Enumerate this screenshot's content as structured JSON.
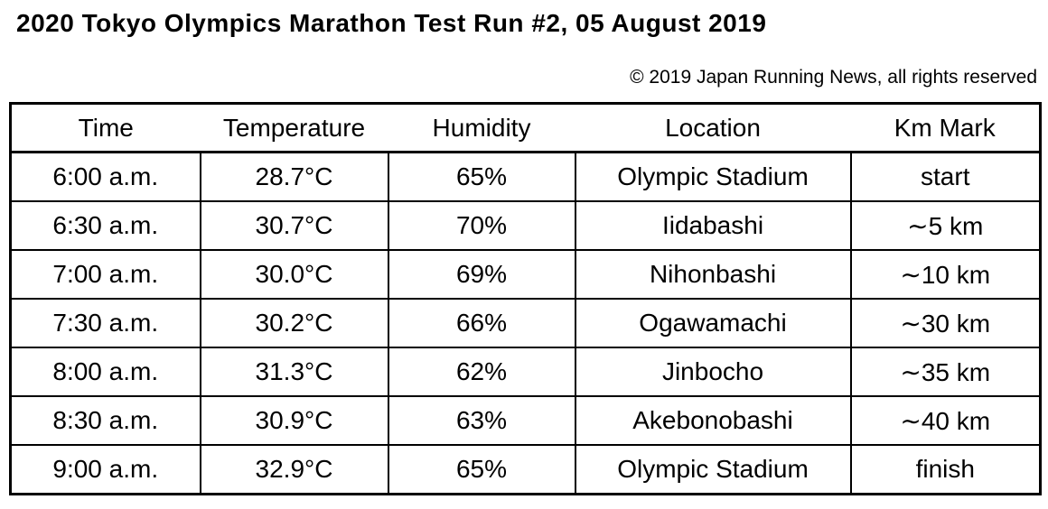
{
  "page": {
    "title": "2020 Tokyo Olympics Marathon Test Run #2, 05 August 2019",
    "copyright": "© 2019 Japan Running News, all rights reserved"
  },
  "colors": {
    "background": "#ffffff",
    "text": "#000000",
    "border": "#000000"
  },
  "table": {
    "headers": [
      "Time",
      "Temperature",
      "Humidity",
      "Location",
      "Km Mark"
    ],
    "rows": [
      [
        "6:00 a.m.",
        "28.7°C",
        "65%",
        "Olympic Stadium",
        "start"
      ],
      [
        "6:30 a.m.",
        "30.7°C",
        "70%",
        "Iidabashi",
        "∼5 km"
      ],
      [
        "7:00 a.m.",
        "30.0°C",
        "69%",
        "Nihonbashi",
        "∼10 km"
      ],
      [
        "7:30 a.m.",
        "30.2°C",
        "66%",
        "Ogawamachi",
        "∼30 km"
      ],
      [
        "8:00 a.m.",
        "31.3°C",
        "62%",
        "Jinbocho",
        "∼35 km"
      ],
      [
        "8:30 a.m.",
        "30.9°C",
        "63%",
        "Akebonobashi",
        "∼40 km"
      ],
      [
        "9:00 a.m.",
        "32.9°C",
        "65%",
        "Olympic Stadium",
        "finish"
      ]
    ]
  },
  "chart_data": {
    "type": "table",
    "title": "2020 Tokyo Olympics Marathon Test Run #2, 05 August 2019",
    "columns": [
      "Time",
      "Temperature",
      "Humidity",
      "Location",
      "Km Mark"
    ],
    "x": [
      "6:00 a.m.",
      "6:30 a.m.",
      "7:00 a.m.",
      "7:30 a.m.",
      "8:00 a.m.",
      "8:30 a.m.",
      "9:00 a.m."
    ],
    "series": [
      {
        "name": "Temperature (°C)",
        "values": [
          28.7,
          30.7,
          30.0,
          30.2,
          31.3,
          30.9,
          32.9
        ]
      },
      {
        "name": "Humidity (%)",
        "values": [
          65,
          70,
          69,
          66,
          62,
          63,
          65
        ]
      }
    ],
    "locations": [
      "Olympic Stadium",
      "Iidabashi",
      "Nihonbashi",
      "Ogawamachi",
      "Jinbocho",
      "Akebonobashi",
      "Olympic Stadium"
    ],
    "km_marks": [
      "start",
      "∼5 km",
      "∼10 km",
      "∼30 km",
      "∼35 km",
      "∼40 km",
      "finish"
    ]
  }
}
